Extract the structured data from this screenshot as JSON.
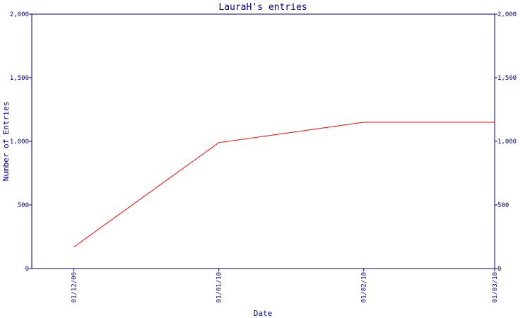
{
  "chart_data": {
    "type": "line",
    "title": "LauraH's entries",
    "xlabel": "Date",
    "ylabel": "Number of Entries",
    "x_ticks": [
      "01/12/09",
      "01/01/10",
      "01/02/10",
      "01/03/10"
    ],
    "y_ticks": [
      "0",
      "500",
      "1,000",
      "1,500",
      "2,000"
    ],
    "ylim": [
      0,
      2000
    ],
    "grid": false,
    "series": [
      {
        "color": "#ff0000",
        "x": [
          "01/12/09",
          "01/01/10",
          "01/02/10",
          "01/03/10"
        ],
        "values": [
          170,
          990,
          1150,
          1150
        ]
      }
    ]
  },
  "colors": {
    "axis": "#000080",
    "line": "#ff0000"
  }
}
